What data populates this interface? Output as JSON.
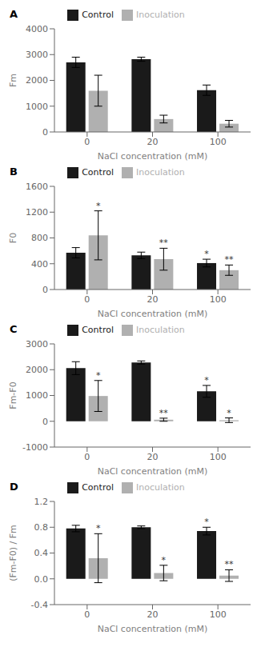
{
  "chart_data": [
    {
      "type": "bar",
      "title": "A",
      "xlabel": "NaCl concentration (mM)",
      "ylabel": "Fm",
      "categories": [
        "0",
        "20",
        "100"
      ],
      "ylim": [
        0,
        4000
      ],
      "yticks": [
        0,
        1000,
        2000,
        3000,
        4000
      ],
      "grid": false,
      "series": [
        {
          "name": "Control",
          "color": "#1a1a1a",
          "values": [
            2700,
            2820,
            1620
          ],
          "errors": [
            200,
            80,
            200
          ],
          "significance": [
            null,
            null,
            null
          ]
        },
        {
          "name": "Inoculation",
          "color": "#b0b0b0",
          "values": [
            1600,
            500,
            320
          ],
          "errors": [
            600,
            150,
            130
          ],
          "significance": [
            null,
            null,
            null
          ]
        }
      ]
    },
    {
      "type": "bar",
      "title": "B",
      "xlabel": "NaCl concentration (mM)",
      "ylabel": "F0",
      "categories": [
        "0",
        "20",
        "100"
      ],
      "ylim": [
        0,
        1600
      ],
      "yticks": [
        0,
        400,
        800,
        1200,
        1600
      ],
      "grid": false,
      "series": [
        {
          "name": "Control",
          "color": "#1a1a1a",
          "values": [
            570,
            530,
            410
          ],
          "errors": [
            80,
            50,
            60
          ],
          "significance": [
            null,
            null,
            "*"
          ]
        },
        {
          "name": "Inoculation",
          "color": "#b0b0b0",
          "values": [
            840,
            470,
            300
          ],
          "errors": [
            380,
            170,
            80
          ],
          "significance": [
            "*",
            "**",
            "**"
          ]
        }
      ]
    },
    {
      "type": "bar",
      "title": "C",
      "xlabel": "NaCl concentration (mM)",
      "ylabel": "Fm-F0",
      "categories": [
        "0",
        "20",
        "100"
      ],
      "ylim": [
        -1000,
        3000
      ],
      "yticks": [
        -1000,
        0,
        1000,
        2000,
        3000
      ],
      "grid": false,
      "series": [
        {
          "name": "Control",
          "color": "#1a1a1a",
          "values": [
            2060,
            2280,
            1160
          ],
          "errors": [
            250,
            60,
            230
          ],
          "significance": [
            null,
            null,
            "*"
          ]
        },
        {
          "name": "Inoculation",
          "color": "#b0b0b0",
          "values": [
            980,
            60,
            40
          ],
          "errors": [
            600,
            60,
            90
          ],
          "significance": [
            "*",
            "**",
            "*"
          ]
        }
      ]
    },
    {
      "type": "bar",
      "title": "D",
      "xlabel": "NaCl concentration (mM)",
      "ylabel": "(Fm-F0) / Fm",
      "categories": [
        "0",
        "20",
        "100"
      ],
      "ylim": [
        -0.4,
        1.2
      ],
      "yticks": [
        -0.4,
        {
          "value": 0,
          "label": "0.0"
        },
        0.4,
        0.8,
        1.2
      ],
      "grid": false,
      "series": [
        {
          "name": "Control",
          "color": "#1a1a1a",
          "values": [
            0.78,
            0.8,
            0.74
          ],
          "errors": [
            0.05,
            0.02,
            0.06
          ],
          "significance": [
            null,
            null,
            "*"
          ]
        },
        {
          "name": "Inoculation",
          "color": "#b0b0b0",
          "values": [
            0.32,
            0.09,
            0.05
          ],
          "errors": [
            0.38,
            0.12,
            0.09
          ],
          "significance": [
            "*",
            "*",
            "**"
          ]
        }
      ]
    }
  ]
}
